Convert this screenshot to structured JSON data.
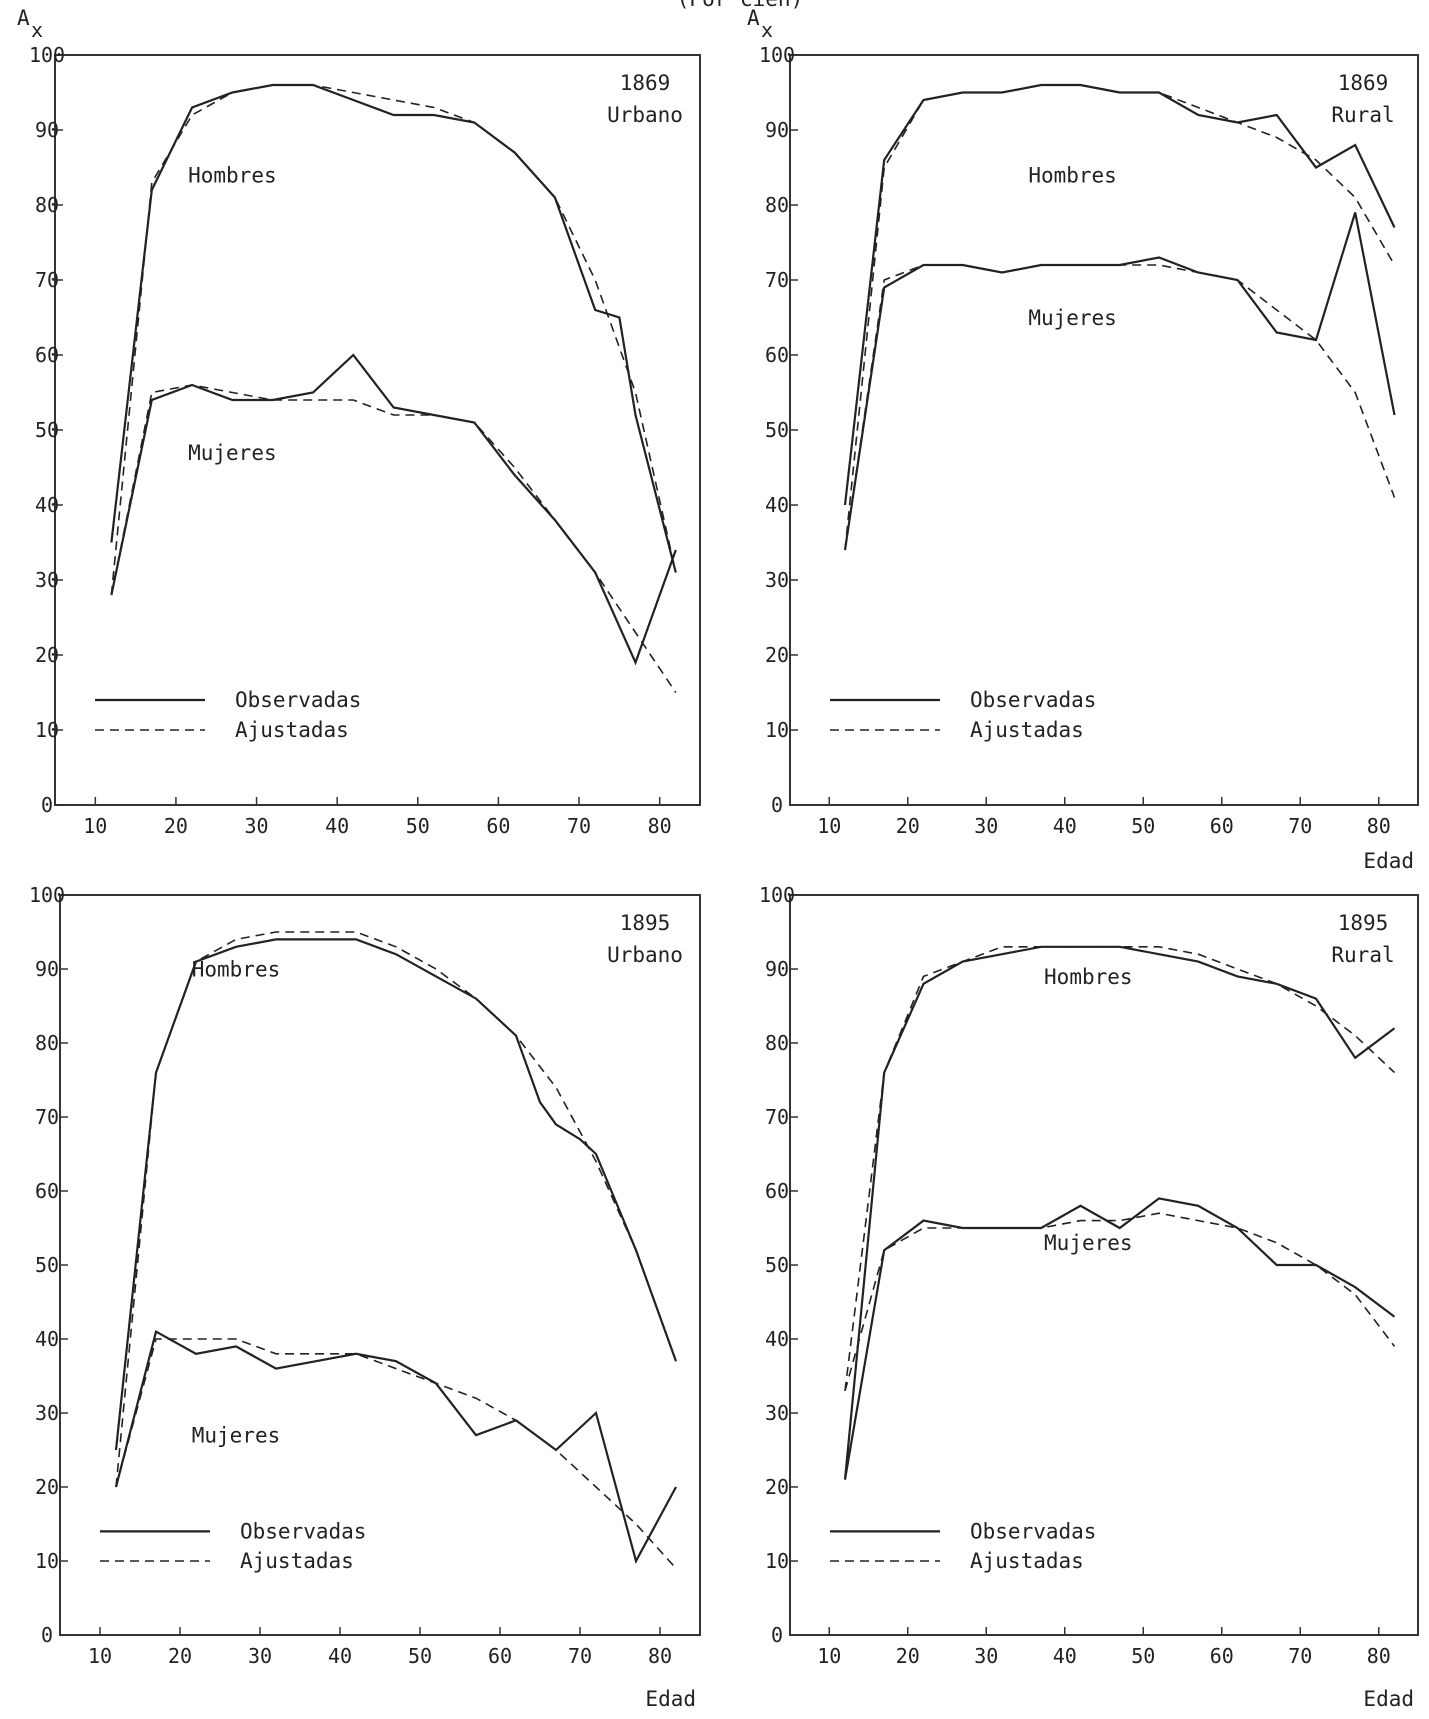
{
  "header": {
    "partial_title": "(Por cien)"
  },
  "chart_data": [
    {
      "type": "line",
      "ylabel": "A",
      "ylabel_sub": "x",
      "xlabel": "",
      "ylim": [
        0,
        100
      ],
      "xlim": [
        5,
        85
      ],
      "yticks": [
        "0",
        "10",
        "20",
        "30",
        "40",
        "50",
        "60",
        "70",
        "80",
        "90",
        "100"
      ],
      "xticks": [
        "10",
        "20",
        "30",
        "40",
        "50",
        "60",
        "70",
        "80"
      ],
      "annotation": [
        "1869",
        "Urbano"
      ],
      "group_labels": [
        {
          "text": "Hombres",
          "x": 27,
          "y": 83
        },
        {
          "text": "Mujeres",
          "x": 27,
          "y": 46
        }
      ],
      "legend": {
        "observed": "Observadas",
        "fitted": "Ajustadas",
        "position": "bottom-left"
      },
      "series": [
        {
          "group": "Hombres",
          "kind": "observed",
          "x": [
            12,
            17,
            22,
            27,
            32,
            37,
            42,
            47,
            52,
            57,
            62,
            67,
            72,
            75,
            77,
            82
          ],
          "y": [
            35,
            82,
            93,
            95,
            96,
            96,
            94,
            92,
            92,
            91,
            87,
            81,
            66,
            65,
            52,
            31
          ]
        },
        {
          "group": "Hombres",
          "kind": "fitted",
          "x": [
            12,
            17,
            22,
            27,
            32,
            37,
            42,
            47,
            52,
            57,
            62,
            67,
            72,
            77,
            82
          ],
          "y": [
            28,
            83,
            92,
            95,
            96,
            96,
            95,
            94,
            93,
            91,
            87,
            81,
            70,
            55,
            31
          ]
        },
        {
          "group": "Mujeres",
          "kind": "observed",
          "x": [
            12,
            17,
            22,
            27,
            32,
            37,
            42,
            47,
            52,
            57,
            62,
            67,
            72,
            77,
            82
          ],
          "y": [
            28,
            54,
            56,
            54,
            54,
            55,
            60,
            53,
            52,
            51,
            44,
            38,
            31,
            19,
            34
          ]
        },
        {
          "group": "Mujeres",
          "kind": "fitted",
          "x": [
            12,
            17,
            22,
            27,
            32,
            37,
            42,
            47,
            52,
            57,
            62,
            67,
            72,
            77,
            82
          ],
          "y": [
            28,
            55,
            56,
            55,
            54,
            54,
            54,
            52,
            52,
            51,
            45,
            38,
            31,
            23,
            15
          ]
        }
      ]
    },
    {
      "type": "line",
      "ylabel": "A",
      "ylabel_sub": "x",
      "xlabel": "Edad",
      "ylim": [
        0,
        100
      ],
      "xlim": [
        5,
        85
      ],
      "yticks": [
        "0",
        "10",
        "20",
        "30",
        "40",
        "50",
        "60",
        "70",
        "80",
        "90",
        "100"
      ],
      "xticks": [
        "10",
        "20",
        "30",
        "40",
        "50",
        "60",
        "70",
        "80"
      ],
      "annotation": [
        "1869",
        "Rural"
      ],
      "group_labels": [
        {
          "text": "Hombres",
          "x": 41,
          "y": 83
        },
        {
          "text": "Mujeres",
          "x": 41,
          "y": 64
        }
      ],
      "legend": {
        "observed": "Observadas",
        "fitted": "Ajustadas",
        "position": "bottom-left"
      },
      "series": [
        {
          "group": "Hombres",
          "kind": "observed",
          "x": [
            12,
            17,
            22,
            27,
            32,
            37,
            42,
            47,
            52,
            57,
            62,
            67,
            72,
            77,
            82
          ],
          "y": [
            40,
            86,
            94,
            95,
            95,
            96,
            96,
            95,
            95,
            92,
            91,
            92,
            85,
            88,
            77
          ]
        },
        {
          "group": "Hombres",
          "kind": "fitted",
          "x": [
            12,
            17,
            22,
            27,
            32,
            37,
            42,
            47,
            52,
            57,
            62,
            67,
            72,
            77,
            82
          ],
          "y": [
            34,
            85,
            94,
            95,
            95,
            96,
            96,
            95,
            95,
            93,
            91,
            89,
            86,
            81,
            72
          ]
        },
        {
          "group": "Mujeres",
          "kind": "observed",
          "x": [
            12,
            17,
            22,
            27,
            32,
            37,
            42,
            47,
            52,
            57,
            62,
            67,
            72,
            77,
            82
          ],
          "y": [
            34,
            69,
            72,
            72,
            71,
            72,
            72,
            72,
            73,
            71,
            70,
            63,
            62,
            79,
            52
          ]
        },
        {
          "group": "Mujeres",
          "kind": "fitted",
          "x": [
            12,
            17,
            22,
            27,
            32,
            37,
            42,
            47,
            52,
            57,
            62,
            67,
            72,
            77,
            82
          ],
          "y": [
            34,
            70,
            72,
            72,
            71,
            72,
            72,
            72,
            72,
            71,
            70,
            66,
            62,
            55,
            41
          ]
        }
      ]
    },
    {
      "type": "line",
      "ylabel": "",
      "ylabel_sub": "",
      "xlabel": "Edad",
      "ylim": [
        0,
        100
      ],
      "xlim": [
        5,
        85
      ],
      "yticks": [
        "0",
        "10",
        "20",
        "30",
        "40",
        "50",
        "60",
        "70",
        "80",
        "90",
        "100"
      ],
      "xticks": [
        "10",
        "20",
        "30",
        "40",
        "50",
        "60",
        "70",
        "80"
      ],
      "annotation": [
        "1895",
        "Urbano"
      ],
      "group_labels": [
        {
          "text": "Hombres",
          "x": 27,
          "y": 89
        },
        {
          "text": "Mujeres",
          "x": 27,
          "y": 26
        }
      ],
      "legend": {
        "observed": "Observadas",
        "fitted": "Ajustadas",
        "position": "bottom-left"
      },
      "series": [
        {
          "group": "Hombres",
          "kind": "observed",
          "x": [
            12,
            17,
            22,
            27,
            32,
            37,
            42,
            47,
            52,
            57,
            62,
            65,
            67,
            70,
            72,
            77,
            82
          ],
          "y": [
            25,
            76,
            91,
            93,
            94,
            94,
            94,
            92,
            89,
            86,
            81,
            72,
            69,
            67,
            65,
            52,
            37
          ]
        },
        {
          "group": "Hombres",
          "kind": "fitted",
          "x": [
            12,
            17,
            22,
            27,
            32,
            37,
            42,
            47,
            52,
            57,
            62,
            67,
            72,
            77,
            82
          ],
          "y": [
            20,
            76,
            91,
            94,
            95,
            95,
            95,
            93,
            90,
            86,
            81,
            74,
            64,
            52,
            37
          ]
        },
        {
          "group": "Mujeres",
          "kind": "observed",
          "x": [
            12,
            17,
            22,
            27,
            32,
            37,
            42,
            47,
            52,
            57,
            62,
            67,
            72,
            77,
            82
          ],
          "y": [
            20,
            41,
            38,
            39,
            36,
            37,
            38,
            37,
            34,
            27,
            29,
            25,
            30,
            10,
            20
          ]
        },
        {
          "group": "Mujeres",
          "kind": "fitted",
          "x": [
            12,
            17,
            22,
            27,
            32,
            37,
            42,
            47,
            52,
            57,
            62,
            67,
            72,
            77,
            82
          ],
          "y": [
            20,
            40,
            40,
            40,
            38,
            38,
            38,
            36,
            34,
            32,
            29,
            25,
            20,
            15,
            9
          ]
        }
      ]
    },
    {
      "type": "line",
      "ylabel": "",
      "ylabel_sub": "",
      "xlabel": "Edad",
      "ylim": [
        0,
        100
      ],
      "xlim": [
        5,
        85
      ],
      "yticks": [
        "0",
        "10",
        "20",
        "30",
        "40",
        "50",
        "60",
        "70",
        "80",
        "90",
        "100"
      ],
      "xticks": [
        "10",
        "20",
        "30",
        "40",
        "50",
        "60",
        "70",
        "80"
      ],
      "annotation": [
        "1895",
        "Rural"
      ],
      "group_labels": [
        {
          "text": "Hombres",
          "x": 43,
          "y": 88
        },
        {
          "text": "Mujeres",
          "x": 43,
          "y": 52
        }
      ],
      "legend": {
        "observed": "Observadas",
        "fitted": "Ajustadas",
        "position": "bottom-left"
      },
      "series": [
        {
          "group": "Hombres",
          "kind": "observed",
          "x": [
            12,
            17,
            22,
            27,
            32,
            37,
            42,
            47,
            52,
            57,
            62,
            67,
            72,
            77,
            82
          ],
          "y": [
            21,
            76,
            88,
            91,
            92,
            93,
            93,
            93,
            92,
            91,
            89,
            88,
            86,
            78,
            82
          ]
        },
        {
          "group": "Hombres",
          "kind": "fitted",
          "x": [
            12,
            17,
            22,
            27,
            32,
            37,
            42,
            47,
            52,
            57,
            62,
            67,
            72,
            77,
            82
          ],
          "y": [
            33,
            76,
            89,
            91,
            93,
            93,
            93,
            93,
            93,
            92,
            90,
            88,
            85,
            81,
            76
          ]
        },
        {
          "group": "Mujeres",
          "kind": "observed",
          "x": [
            12,
            17,
            22,
            27,
            32,
            37,
            42,
            47,
            52,
            57,
            62,
            67,
            72,
            77,
            82
          ],
          "y": [
            21,
            52,
            56,
            55,
            55,
            55,
            58,
            55,
            59,
            58,
            55,
            50,
            50,
            47,
            43
          ]
        },
        {
          "group": "Mujeres",
          "kind": "fitted",
          "x": [
            12,
            17,
            22,
            27,
            32,
            37,
            42,
            47,
            52,
            57,
            62,
            67,
            72,
            77,
            82
          ],
          "y": [
            33,
            52,
            55,
            55,
            55,
            55,
            56,
            56,
            57,
            56,
            55,
            53,
            50,
            46,
            39
          ]
        }
      ]
    }
  ]
}
